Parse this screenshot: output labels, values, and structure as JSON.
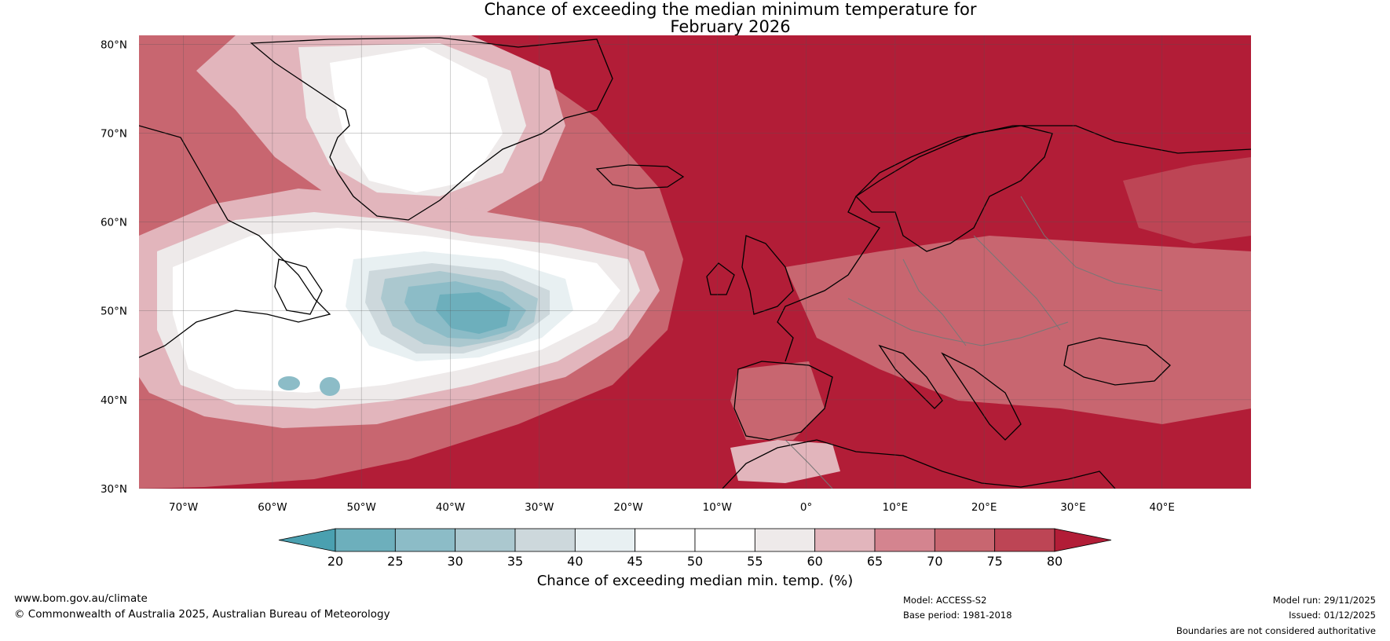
{
  "title": {
    "line1": "Chance of exceeding the median minimum temperature for",
    "line2": "February 2026"
  },
  "map": {
    "region": "North Atlantic and Europe",
    "lat_ticks": [
      "80°N",
      "70°N",
      "60°N",
      "50°N",
      "40°N",
      "30°N"
    ],
    "lon_ticks": [
      "70°W",
      "60°W",
      "50°W",
      "40°W",
      "30°W",
      "20°W",
      "10°W",
      "0°",
      "10°E",
      "20°E",
      "30°E",
      "40°E"
    ],
    "extent": {
      "lon_min": -75,
      "lon_max": 50,
      "lat_min": 30,
      "lat_max": 81
    }
  },
  "colorbar": {
    "tick_labels": [
      "20",
      "25",
      "30",
      "35",
      "40",
      "45",
      "50",
      "55",
      "60",
      "65",
      "70",
      "75",
      "80"
    ],
    "colors": [
      "#4aa0b0",
      "#6dafbc",
      "#8cbcc7",
      "#abc8cf",
      "#cdd8dc",
      "#e8f0f2",
      "#ffffff",
      "#ffffff",
      "#eeeaea",
      "#e2b5bc",
      "#d4848f",
      "#c86670",
      "#bd4555",
      "#b21d37"
    ],
    "label": "Chance of exceeding median min. temp. (%)"
  },
  "footer": {
    "website": "www.bom.gov.au/climate",
    "copyright": "© Commonwealth of Australia 2025, Australian Bureau of Meteorology",
    "model": "Model: ACCESS-S2",
    "base_period": "Base period: 1981-2018",
    "model_run": "Model run: 29/11/2025",
    "issued": "Issued: 01/12/2025",
    "disclaimer": "Boundaries are not considered authoritative"
  },
  "colors": {
    "high": "#b21d37",
    "low": "#4aa0b0",
    "neutral": "#ffffff"
  }
}
